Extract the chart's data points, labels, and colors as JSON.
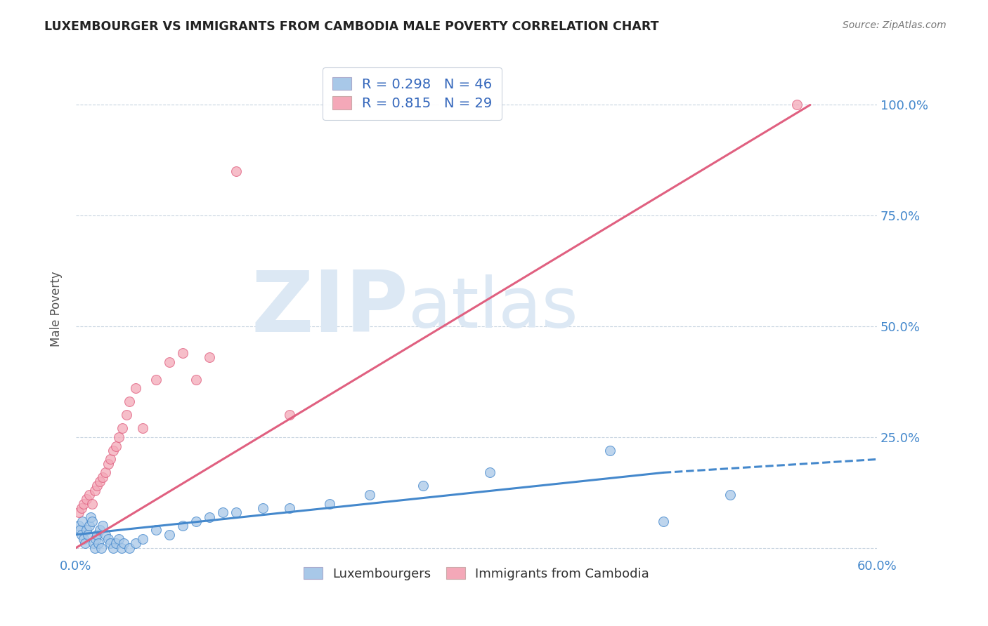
{
  "title": "LUXEMBOURGER VS IMMIGRANTS FROM CAMBODIA MALE POVERTY CORRELATION CHART",
  "source": "Source: ZipAtlas.com",
  "ylabel": "Male Poverty",
  "y_ticks": [
    0.0,
    0.25,
    0.5,
    0.75,
    1.0
  ],
  "y_tick_labels": [
    "",
    "25.0%",
    "50.0%",
    "75.0%",
    "100.0%"
  ],
  "xlim": [
    0.0,
    0.6
  ],
  "ylim": [
    -0.02,
    1.1
  ],
  "r_lux": 0.298,
  "n_lux": 46,
  "r_cam": 0.815,
  "n_cam": 29,
  "lux_color": "#a8c8e8",
  "cam_color": "#f4a8b8",
  "lux_line_color": "#4488cc",
  "cam_line_color": "#e06080",
  "watermark_zip": "ZIP",
  "watermark_atlas": "atlas",
  "watermark_color": "#dce8f4",
  "lux_scatter_x": [
    0.002,
    0.003,
    0.004,
    0.005,
    0.006,
    0.007,
    0.008,
    0.009,
    0.01,
    0.011,
    0.012,
    0.013,
    0.014,
    0.015,
    0.016,
    0.017,
    0.018,
    0.019,
    0.02,
    0.022,
    0.024,
    0.026,
    0.028,
    0.03,
    0.032,
    0.034,
    0.036,
    0.04,
    0.045,
    0.05,
    0.06,
    0.07,
    0.08,
    0.09,
    0.1,
    0.11,
    0.12,
    0.14,
    0.16,
    0.19,
    0.22,
    0.26,
    0.31,
    0.4,
    0.44,
    0.49
  ],
  "lux_scatter_y": [
    0.05,
    0.04,
    0.03,
    0.06,
    0.02,
    0.01,
    0.04,
    0.03,
    0.05,
    0.07,
    0.06,
    0.01,
    0.0,
    0.02,
    0.03,
    0.01,
    0.04,
    0.0,
    0.05,
    0.03,
    0.02,
    0.01,
    0.0,
    0.01,
    0.02,
    0.0,
    0.01,
    0.0,
    0.01,
    0.02,
    0.04,
    0.03,
    0.05,
    0.06,
    0.07,
    0.08,
    0.08,
    0.09,
    0.09,
    0.1,
    0.12,
    0.14,
    0.17,
    0.22,
    0.06,
    0.12
  ],
  "cam_scatter_x": [
    0.002,
    0.004,
    0.006,
    0.008,
    0.01,
    0.012,
    0.014,
    0.016,
    0.018,
    0.02,
    0.022,
    0.024,
    0.026,
    0.028,
    0.03,
    0.032,
    0.035,
    0.038,
    0.04,
    0.045,
    0.05,
    0.06,
    0.07,
    0.08,
    0.09,
    0.1,
    0.12,
    0.16,
    0.54
  ],
  "cam_scatter_y": [
    0.08,
    0.09,
    0.1,
    0.11,
    0.12,
    0.1,
    0.13,
    0.14,
    0.15,
    0.16,
    0.17,
    0.19,
    0.2,
    0.22,
    0.23,
    0.25,
    0.27,
    0.3,
    0.33,
    0.36,
    0.27,
    0.38,
    0.42,
    0.44,
    0.38,
    0.43,
    0.85,
    0.3,
    1.0
  ],
  "lux_regline_x": [
    0.0,
    0.44
  ],
  "lux_regline_y": [
    0.03,
    0.17
  ],
  "lux_dashline_x": [
    0.44,
    0.6
  ],
  "lux_dashline_y": [
    0.17,
    0.2
  ],
  "cam_regline_x": [
    0.0,
    0.55
  ],
  "cam_regline_y": [
    0.0,
    1.0
  ]
}
